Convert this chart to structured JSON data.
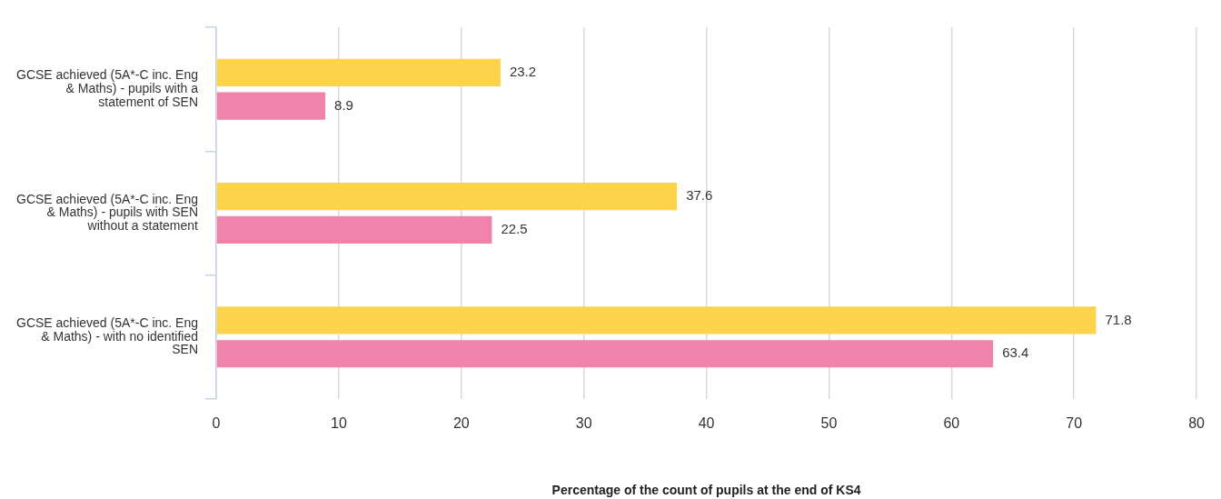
{
  "chart_data": {
    "type": "bar",
    "orientation": "horizontal",
    "xlabel": "Percentage of the count of pupils at the end of KS4",
    "categories": [
      "GCSE achieved (5A*-C inc. Eng & Maths) - pupils with a statement of SEN",
      "GCSE achieved (5A*-C inc. Eng & Maths) - pupils with SEN without a statement",
      "GCSE achieved (5A*-C inc. Eng & Maths) - with no identified SEN"
    ],
    "series": [
      {
        "color": "#fbd44c",
        "values": [
          23.2,
          37.6,
          71.8
        ]
      },
      {
        "color": "#f083aa",
        "values": [
          8.9,
          22.5,
          63.4
        ]
      }
    ],
    "xlim": [
      0,
      80
    ],
    "xticks": [
      0,
      10,
      20,
      30,
      40,
      50,
      60,
      70,
      80
    ],
    "grid": "x",
    "data_labels": true,
    "legend": false
  }
}
